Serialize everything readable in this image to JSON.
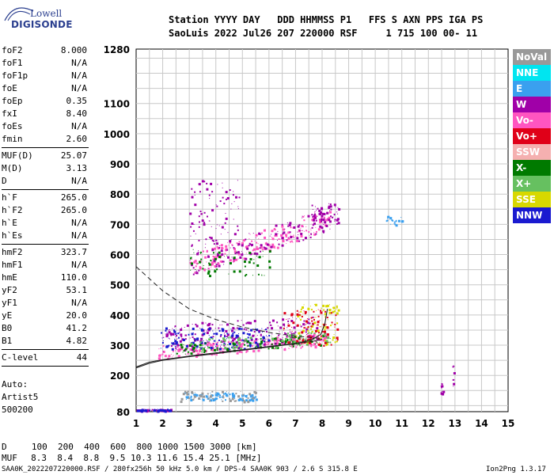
{
  "logo": {
    "top": "Lowell",
    "bottom": "DIGISONDE"
  },
  "header": {
    "line1": "Station YYYY DAY   DDD HHMMSS P1   FFS S AXN PPS IGA PS",
    "line2": "SaoLuis 2022 Jul26 207 220000 RSF     1 715 100 00- 11"
  },
  "params_group1": [
    {
      "name": "foF2",
      "value": "8.000"
    },
    {
      "name": "foF1",
      "value": "N/A"
    },
    {
      "name": "foF1p",
      "value": "N/A"
    },
    {
      "name": "foE",
      "value": "N/A"
    },
    {
      "name": "foEp",
      "value": "0.35"
    },
    {
      "name": "fxI",
      "value": "8.40"
    },
    {
      "name": "foEs",
      "value": "N/A"
    },
    {
      "name": "fmin",
      "value": "2.60"
    }
  ],
  "params_group2": [
    {
      "name": "MUF(D)",
      "value": "25.07"
    },
    {
      "name": "M(D)",
      "value": "3.13"
    },
    {
      "name": "D",
      "value": "N/A"
    }
  ],
  "params_group3": [
    {
      "name": "h`F",
      "value": "265.0"
    },
    {
      "name": "h`F2",
      "value": "265.0"
    },
    {
      "name": "h`E",
      "value": "N/A"
    },
    {
      "name": "h`Es",
      "value": "N/A"
    }
  ],
  "params_group4": [
    {
      "name": "hmF2",
      "value": "323.7"
    },
    {
      "name": "hmF1",
      "value": "N/A"
    },
    {
      "name": "hmE",
      "value": "110.0"
    },
    {
      "name": "yF2",
      "value": "53.1"
    },
    {
      "name": "yF1",
      "value": "N/A"
    },
    {
      "name": "yE",
      "value": "20.0"
    },
    {
      "name": "B0",
      "value": "41.2"
    },
    {
      "name": "B1",
      "value": "4.82"
    }
  ],
  "params_group5": [
    {
      "name": "C-level",
      "value": "44"
    }
  ],
  "auto": {
    "line1": "Auto:",
    "line2": "Artist5",
    "line3": "500200"
  },
  "legend": [
    {
      "label": "NoVal",
      "color": "#999999"
    },
    {
      "label": "NNE",
      "color": "#00e5f0"
    },
    {
      "label": "E",
      "color": "#3aa0ef"
    },
    {
      "label": "W",
      "color": "#a000a8"
    },
    {
      "label": "Vo-",
      "color": "#ff55c0"
    },
    {
      "label": "Vo+",
      "color": "#e00018"
    },
    {
      "label": "SSW",
      "color": "#f5b0b0"
    },
    {
      "label": "X-",
      "color": "#007a00"
    },
    {
      "label": "X+",
      "color": "#66c060"
    },
    {
      "label": "SSE",
      "color": "#d8d800"
    },
    {
      "label": "NNW",
      "color": "#1a1ad0"
    }
  ],
  "muf_table": {
    "d_label": "D",
    "d_values": "  100  200  400  600  800 1000 1500 3000 [km]",
    "muf_label": "MUF",
    "muf_values": "  8.3  8.4  8.8  9.5 10.3 11.6 15.4 25.1 [MHz]"
  },
  "footer": {
    "left": "SAA0K_2022207220000.RSF / 280fx256h 50 kHz 5.0 km / DPS-4 SAA0K 903 / 2.6 S 315.8 E",
    "right": "Ion2Png 1.3.17"
  },
  "chart_data": {
    "type": "scatter",
    "x_ticks": [
      1,
      2,
      3,
      4,
      5,
      6,
      7,
      8,
      9,
      10,
      11,
      12,
      13,
      14,
      15
    ],
    "y_ticks": [
      80,
      200,
      300,
      400,
      500,
      600,
      700,
      800,
      900,
      1000,
      1100,
      1280
    ],
    "xlim": [
      1,
      15
    ],
    "ylim": [
      80,
      1280
    ],
    "grid": true,
    "profile_solid": [
      [
        1,
        228
      ],
      [
        1.5,
        244
      ],
      [
        2,
        252
      ],
      [
        3,
        264
      ],
      [
        4,
        275
      ],
      [
        5,
        285
      ],
      [
        6,
        296
      ],
      [
        7,
        306
      ],
      [
        7.6,
        312
      ],
      [
        8,
        320
      ]
    ],
    "profile_dashed": [
      [
        1,
        560
      ],
      [
        2,
        480
      ],
      [
        3,
        420
      ],
      [
        4,
        385
      ],
      [
        5,
        360
      ],
      [
        6,
        342
      ],
      [
        7,
        330
      ],
      [
        8,
        322
      ]
    ],
    "trace_lower_fit": [
      [
        1,
        225
      ],
      [
        1.5,
        240
      ],
      [
        2,
        250
      ],
      [
        3,
        262
      ],
      [
        4,
        272
      ],
      [
        5,
        283
      ],
      [
        6,
        294
      ],
      [
        7,
        305
      ],
      [
        7.6,
        318
      ],
      [
        7.95,
        336
      ],
      [
        8.1,
        370
      ],
      [
        8.2,
        420
      ]
    ],
    "clusters": [
      {
        "name": "F2 o-trace",
        "color": "#ff55c0",
        "x": [
          1.8,
          8.2
        ],
        "y": [
          255,
          300
        ],
        "slope": 7,
        "n": 260
      },
      {
        "name": "F2 spread W",
        "color": "#a000a8",
        "x": [
          2.0,
          7.8
        ],
        "y": [
          280,
          370
        ],
        "slope": 5,
        "n": 220
      },
      {
        "name": "F2 spread NNW",
        "color": "#1a1ad0",
        "x": [
          1.9,
          6.0
        ],
        "y": [
          290,
          360
        ],
        "slope": 0,
        "n": 150
      },
      {
        "name": "F2 x-trace",
        "color": "#007a00",
        "x": [
          2.5,
          8.3
        ],
        "y": [
          270,
          305
        ],
        "slope": 6,
        "n": 120
      },
      {
        "name": "F2 x+ trace",
        "color": "#66c060",
        "x": [
          3,
          8.3
        ],
        "y": [
          275,
          320
        ],
        "slope": 6,
        "n": 80
      },
      {
        "name": "F2 SSE",
        "color": "#d8d800",
        "x": [
          7.0,
          8.6
        ],
        "y": [
          300,
          440
        ],
        "slope": 0,
        "n": 90
      },
      {
        "name": "F2 Vo+",
        "color": "#e00018",
        "x": [
          6.5,
          8.6
        ],
        "y": [
          300,
          420
        ],
        "slope": 0,
        "n": 90
      },
      {
        "name": "second hop",
        "color": "#ff55c0",
        "x": [
          3.0,
          8.3
        ],
        "y": [
          525,
          600
        ],
        "slope": 30,
        "n": 200
      },
      {
        "name": "second hop W",
        "color": "#a000a8",
        "x": [
          3.0,
          8.3
        ],
        "y": [
          530,
          610
        ],
        "slope": 28,
        "n": 140
      },
      {
        "name": "second hop X",
        "color": "#007a00",
        "x": [
          3.0,
          6.0
        ],
        "y": [
          530,
          620
        ],
        "slope": 0,
        "n": 60
      },
      {
        "name": "upper diffuse",
        "color": "#a000a8",
        "x": [
          3.0,
          4.9
        ],
        "y": [
          630,
          850
        ],
        "slope": 0,
        "n": 90
      },
      {
        "name": "low echoes",
        "color": "#3aa0ef",
        "x": [
          2.8,
          5.5
        ],
        "y": [
          120,
          145
        ],
        "slope": 0,
        "n": 90
      },
      {
        "name": "low echoes NoVal",
        "color": "#999999",
        "x": [
          2.6,
          5.5
        ],
        "y": [
          115,
          150
        ],
        "slope": 0,
        "n": 60
      },
      {
        "name": "low W",
        "color": "#a000a8",
        "x": [
          1.0,
          2.3
        ],
        "y": [
          84,
          90
        ],
        "slope": 0,
        "n": 60
      },
      {
        "name": "low NNW",
        "color": "#1a1ad0",
        "x": [
          1.0,
          2.3
        ],
        "y": [
          84,
          90
        ],
        "slope": 0,
        "n": 40
      },
      {
        "name": "upper trace",
        "color": "#a000a8",
        "x": [
          7.6,
          8.6
        ],
        "y": [
          700,
          770
        ],
        "slope": 0,
        "n": 60
      },
      {
        "name": "isolated E",
        "color": "#3aa0ef",
        "x": [
          10.4,
          11.0
        ],
        "y": [
          700,
          730
        ],
        "slope": 0,
        "n": 20
      },
      {
        "name": "isolated W 12.5",
        "color": "#a000a8",
        "x": [
          12.45,
          12.55
        ],
        "y": [
          140,
          175
        ],
        "slope": 0,
        "n": 12
      },
      {
        "name": "isolated W 12.9",
        "color": "#a000a8",
        "x": [
          12.9,
          13.0
        ],
        "y": [
          140,
          235
        ],
        "slope": 0,
        "n": 8
      }
    ]
  }
}
